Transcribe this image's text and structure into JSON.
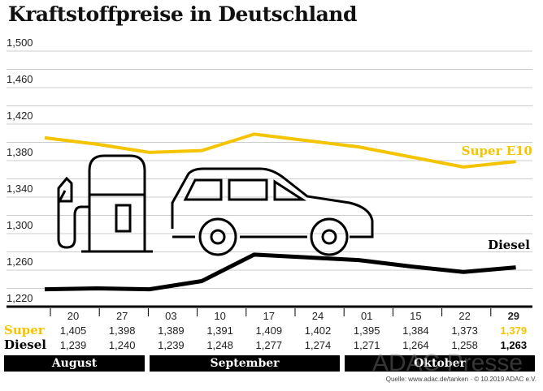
{
  "chart_data": {
    "type": "line",
    "title": "Kraftstoffpreise in Deutschland",
    "categories": [
      "20",
      "27",
      "03",
      "10",
      "17",
      "24",
      "01",
      "15",
      "22",
      "29"
    ],
    "months": [
      "August",
      "September",
      "Oktober"
    ],
    "ylim": [
      1.22,
      1.5
    ],
    "yticks": [
      "1,500",
      "1,460",
      "1,420",
      "1,380",
      "1,340",
      "1,300",
      "1,260",
      "1,220"
    ],
    "grid": true,
    "series": [
      {
        "name": "Super E10",
        "row_label": "Super",
        "color": "#f5c400",
        "values": [
          1.405,
          1.398,
          1.389,
          1.391,
          1.409,
          1.402,
          1.395,
          1.384,
          1.373,
          1.379
        ],
        "labels": [
          "1,405",
          "1,398",
          "1,389",
          "1,391",
          "1,409",
          "1,402",
          "1,395",
          "1,384",
          "1,373",
          "1,379"
        ]
      },
      {
        "name": "Diesel",
        "row_label": "Diesel",
        "color": "#000000",
        "values": [
          1.239,
          1.24,
          1.239,
          1.248,
          1.277,
          1.274,
          1.271,
          1.264,
          1.258,
          1.263
        ],
        "labels": [
          "1,239",
          "1,240",
          "1,239",
          "1,248",
          "1,277",
          "1,274",
          "1,271",
          "1,264",
          "1,258",
          "1,263"
        ]
      }
    ]
  },
  "watermark": "ADAC Presse",
  "source": "Quelle: www.adac.de/tanken  · © 10.2019  ADAC e.V.",
  "icons": [
    "fuel-pump-icon",
    "car-icon"
  ]
}
